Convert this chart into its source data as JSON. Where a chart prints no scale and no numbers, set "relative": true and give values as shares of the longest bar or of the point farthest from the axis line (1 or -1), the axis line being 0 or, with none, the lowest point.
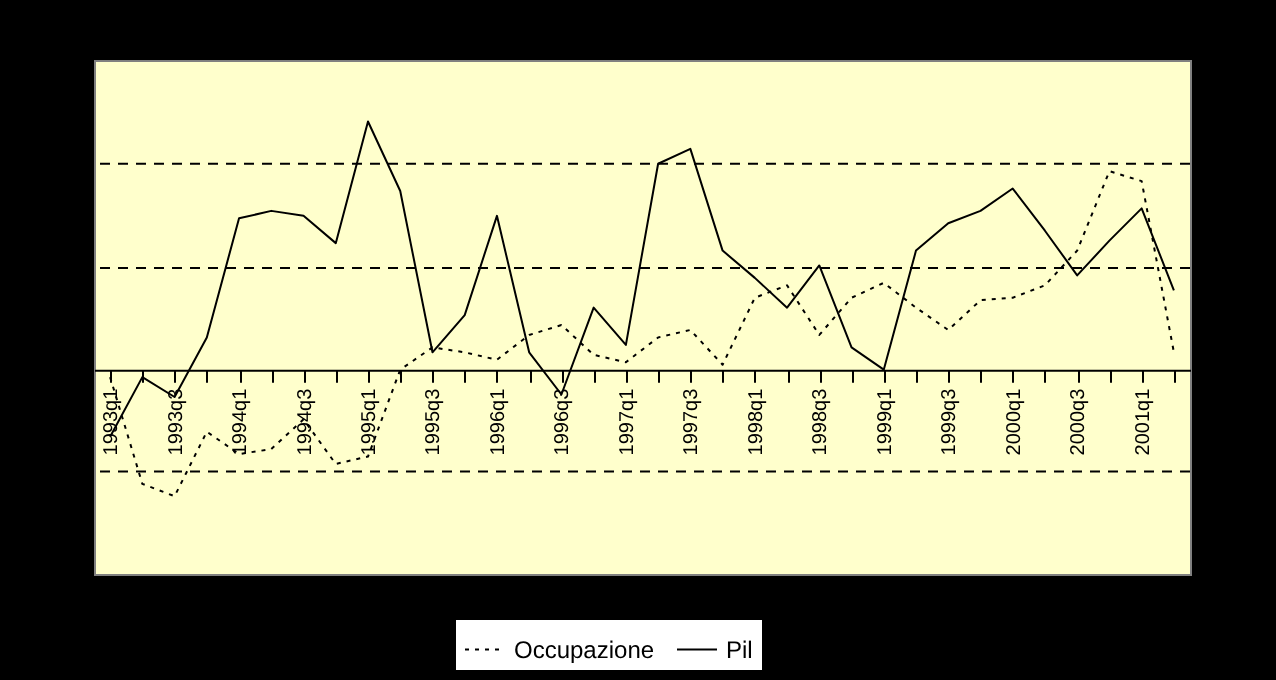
{
  "chart_data": {
    "type": "line",
    "relative": true,
    "legend": "bottom",
    "marker": "none",
    "categories": [
      "1993q1",
      null,
      "1993q3",
      null,
      "1994q1",
      null,
      "1994q3",
      null,
      "1995q1",
      null,
      "1995q3",
      null,
      "1996q1",
      null,
      "1996q3",
      null,
      "1997q1",
      null,
      "1997q3",
      null,
      "1998q1",
      null,
      "1998q3",
      null,
      "1999q1",
      null,
      "1999q3",
      null,
      "2000q1",
      null,
      "2000q3",
      null,
      "2001q1",
      null
    ],
    "series": [
      {
        "name": "Occupazione",
        "color": "#000000",
        "line_style": "dotted",
        "values": [
          -0.03,
          -0.46,
          -0.51,
          -0.25,
          -0.34,
          -0.32,
          -0.2,
          -0.38,
          -0.35,
          0,
          0.09,
          0.07,
          0.04,
          0.14,
          0.18,
          0.06,
          0.03,
          0.13,
          0.16,
          0.02,
          0.29,
          0.34,
          0.14,
          0.29,
          0.35,
          0.25,
          0.16,
          0.28,
          0.29,
          0.34,
          0.48,
          0.8,
          0.76,
          0.07
        ]
      },
      {
        "name": "Pil",
        "color": "#000000",
        "line_style": "solid",
        "values": [
          -0.27,
          -0.03,
          -0.11,
          0.13,
          0.61,
          0.64,
          0.62,
          0.51,
          1,
          0.72,
          0.07,
          0.22,
          0.62,
          0.07,
          -0.1,
          0.25,
          0.1,
          0.83,
          0.89,
          0.48,
          0.37,
          0.25,
          0.42,
          0.09,
          0,
          0.48,
          0.59,
          0.64,
          0.73,
          0.56,
          0.38,
          0.52,
          0.65,
          0.32
        ]
      }
    ],
    "ref_lines": [
      {
        "axis": "y",
        "value": 0.83,
        "color": "#000000",
        "line_style": "dashed"
      },
      {
        "axis": "y",
        "value": 0.41,
        "color": "#000000",
        "line_style": "dashed"
      },
      {
        "axis": "y",
        "value": -0.41,
        "color": "#000000",
        "line_style": "dashed"
      }
    ]
  }
}
